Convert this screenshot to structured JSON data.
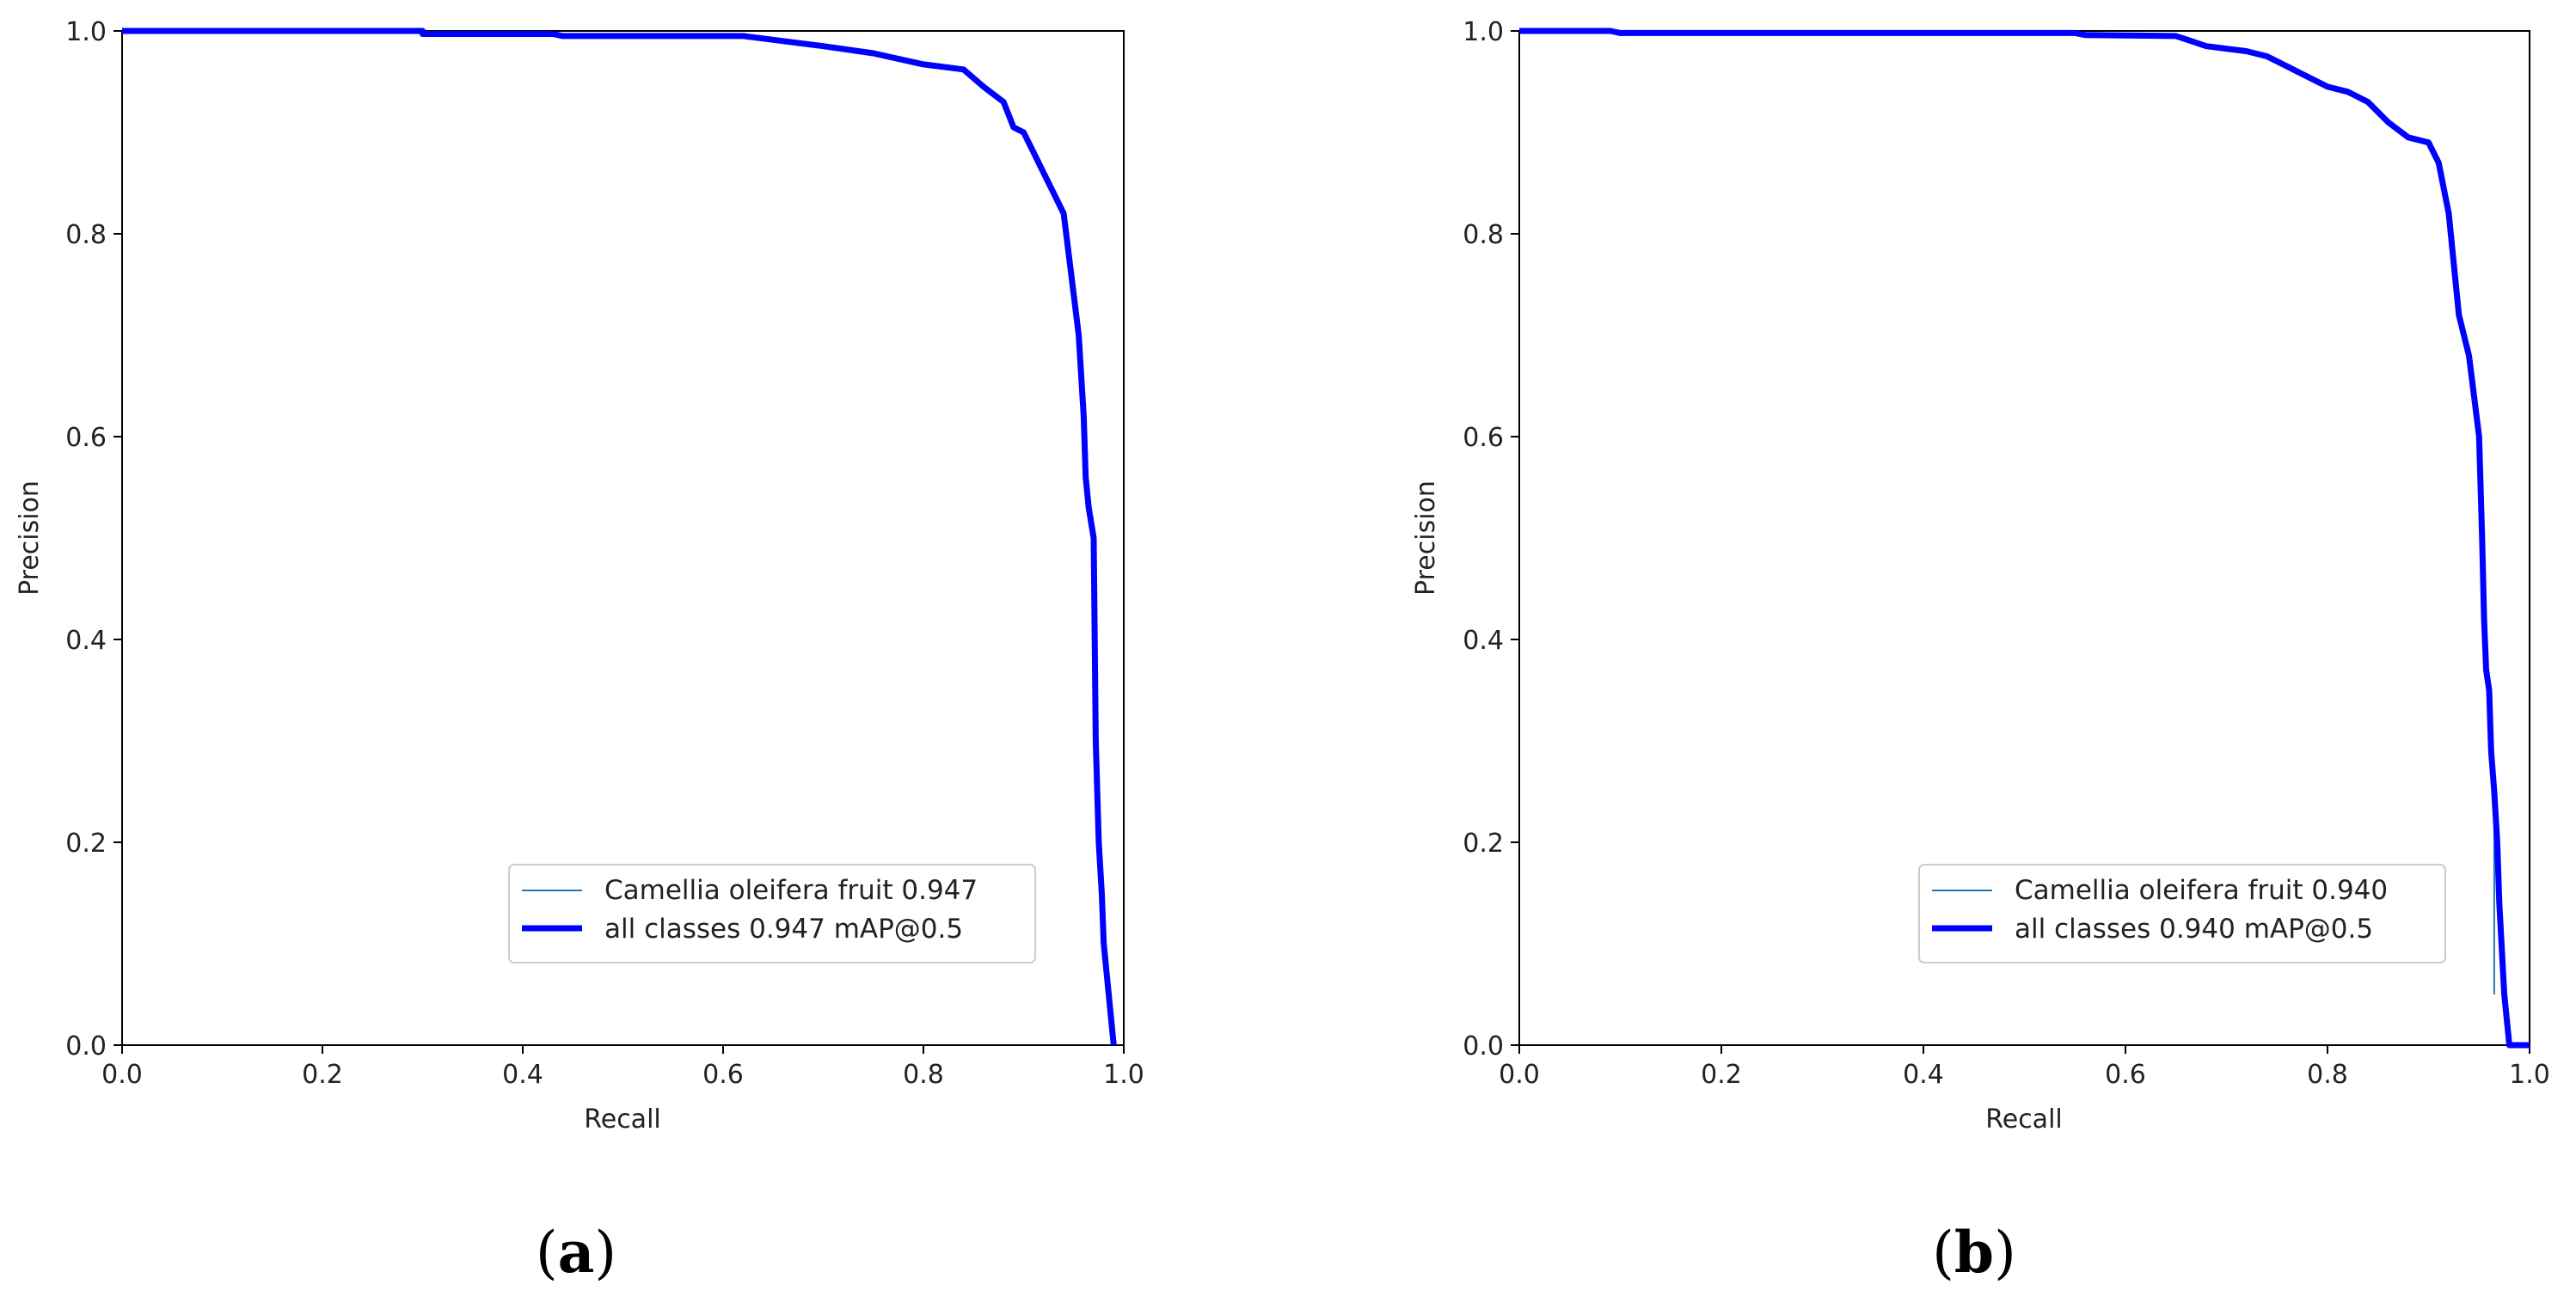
{
  "chart_data": [
    {
      "type": "line",
      "panel_label": "a",
      "xlabel": "Recall",
      "ylabel": "Precision",
      "xlim": [
        0,
        1
      ],
      "ylim": [
        0,
        1
      ],
      "xticks": [
        "0.0",
        "0.2",
        "0.4",
        "0.6",
        "0.8",
        "1.0"
      ],
      "yticks": [
        "0.0",
        "0.2",
        "0.4",
        "0.6",
        "0.8",
        "1.0"
      ],
      "grid": false,
      "legend_position": "lower-right",
      "colors": {
        "class_line": "#1f77b4",
        "all_line": "#0000ff"
      },
      "series": [
        {
          "name": "Camellia oleifera fruit 0.947",
          "width": "thin",
          "x": [],
          "y": []
        },
        {
          "name": "all classes 0.947 mAP@0.5",
          "width": "thick",
          "x": [
            0.0,
            0.3,
            0.3,
            0.43,
            0.44,
            0.62,
            0.66,
            0.7,
            0.75,
            0.8,
            0.84,
            0.86,
            0.88,
            0.89,
            0.9,
            0.91,
            0.92,
            0.93,
            0.94,
            0.95,
            0.955,
            0.96,
            0.962,
            0.965,
            0.97,
            0.972,
            0.975,
            0.978,
            0.98,
            0.985,
            0.99
          ],
          "y": [
            1.0,
            1.0,
            0.997,
            0.997,
            0.995,
            0.995,
            0.99,
            0.985,
            0.978,
            0.967,
            0.962,
            0.945,
            0.93,
            0.905,
            0.9,
            0.88,
            0.86,
            0.84,
            0.82,
            0.74,
            0.7,
            0.62,
            0.56,
            0.53,
            0.5,
            0.3,
            0.2,
            0.15,
            0.1,
            0.05,
            0.0
          ]
        }
      ]
    },
    {
      "type": "line",
      "panel_label": "b",
      "xlabel": "Recall",
      "ylabel": "Precision",
      "xlim": [
        0,
        1
      ],
      "ylim": [
        0,
        1
      ],
      "xticks": [
        "0.0",
        "0.2",
        "0.4",
        "0.6",
        "0.8",
        "1.0"
      ],
      "yticks": [
        "0.0",
        "0.2",
        "0.4",
        "0.6",
        "0.8",
        "1.0"
      ],
      "grid": false,
      "legend_position": "lower-right",
      "colors": {
        "class_line": "#1f77b4",
        "all_line": "#0000ff"
      },
      "series": [
        {
          "name": "Camellia oleifera fruit 0.940",
          "width": "thin",
          "x": [
            0.965,
            0.965
          ],
          "y": [
            0.24,
            0.05
          ]
        },
        {
          "name": "all classes 0.940 mAP@0.5",
          "width": "thick",
          "x": [
            0.0,
            0.09,
            0.1,
            0.55,
            0.56,
            0.65,
            0.68,
            0.72,
            0.74,
            0.76,
            0.78,
            0.8,
            0.82,
            0.84,
            0.86,
            0.88,
            0.9,
            0.91,
            0.92,
            0.93,
            0.94,
            0.945,
            0.95,
            0.953,
            0.955,
            0.957,
            0.96,
            0.962,
            0.965,
            0.968,
            0.97,
            0.975,
            0.98,
            1.0
          ],
          "y": [
            1.0,
            1.0,
            0.998,
            0.998,
            0.996,
            0.995,
            0.985,
            0.98,
            0.975,
            0.965,
            0.955,
            0.945,
            0.94,
            0.93,
            0.91,
            0.895,
            0.89,
            0.87,
            0.82,
            0.72,
            0.68,
            0.64,
            0.6,
            0.5,
            0.42,
            0.37,
            0.35,
            0.29,
            0.25,
            0.2,
            0.14,
            0.05,
            0.0,
            0.0
          ]
        }
      ]
    }
  ]
}
